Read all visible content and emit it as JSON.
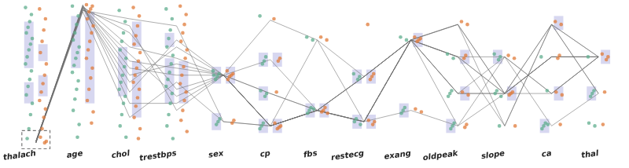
{
  "chart_data": {
    "type": "parallel_coordinates",
    "categories": [
      "thalach",
      "age",
      "chol",
      "trestbps",
      "sex",
      "cp",
      "fbs",
      "restecg",
      "exang",
      "oldpeak",
      "slope",
      "ca",
      "thal"
    ],
    "ylim": [
      0,
      1
    ],
    "tick_labels": "x",
    "grid": false,
    "series": [
      {
        "type": "line",
        "color": "#6e6e6e",
        "line_style": "solid",
        "values": [
          [
            0.03,
            0.99,
            0.6,
            0.55,
            0.5,
            0.14,
            0.25,
            0.17,
            0.75,
            0.86,
            0.37,
            0.86,
            0.63
          ],
          [
            0.02,
            0.98,
            0.8,
            0.4,
            0.5,
            0.14,
            0.25,
            0.49,
            0.75,
            0.63,
            0.37,
            0.63,
            0.63
          ],
          [
            0.03,
            0.97,
            0.45,
            0.7,
            0.5,
            0.37,
            0.25,
            0.17,
            0.75,
            0.37,
            0.63,
            0.37,
            0.63
          ],
          [
            0.02,
            1.0,
            0.3,
            0.3,
            0.5,
            0.14,
            0.75,
            0.49,
            0.75,
            0.63,
            0.14,
            0.86,
            0.37
          ],
          [
            0.03,
            0.96,
            0.9,
            0.85,
            0.17,
            0.14,
            0.25,
            0.17,
            0.75,
            0.86,
            0.37,
            0.63,
            0.63
          ],
          [
            0.02,
            0.98,
            0.55,
            0.5,
            0.5,
            0.61,
            0.25,
            0.49,
            0.75,
            0.37,
            0.37,
            0.37,
            0.63
          ],
          [
            0.03,
            0.99,
            0.7,
            0.62,
            0.5,
            0.14,
            0.25,
            0.17,
            0.25,
            0.14,
            0.63,
            0.14,
            0.37
          ],
          [
            0.02,
            0.95,
            0.2,
            0.45,
            0.17,
            0.14,
            0.25,
            0.49,
            0.75,
            0.63,
            0.37,
            0.63,
            0.63
          ],
          [
            0.03,
            0.97,
            0.65,
            0.35,
            0.5,
            0.89,
            0.75,
            0.17,
            0.75,
            0.86,
            0.14,
            0.86,
            0.63
          ],
          [
            0.02,
            0.99,
            0.38,
            0.75,
            0.5,
            0.14,
            0.25,
            0.17,
            0.75,
            0.37,
            0.37,
            0.63,
            0.63
          ],
          [
            0.03,
            0.98,
            0.5,
            0.58,
            0.5,
            0.14,
            0.25,
            0.49,
            0.75,
            0.63,
            0.63,
            0.37,
            0.63
          ],
          [
            0.02,
            0.96,
            0.85,
            0.25,
            0.5,
            0.37,
            0.25,
            0.17,
            0.75,
            0.14,
            0.37,
            0.86,
            0.37
          ]
        ]
      },
      {
        "type": "scatter",
        "color": "#5fad8e",
        "marker": "circle",
        "values": {
          "thalach": [
            0.98,
            0.93,
            0.88,
            0.84,
            0.8,
            0.76,
            0.72,
            0.68,
            0.63,
            0.58,
            0.53,
            0.47,
            0.42,
            0.36,
            0.3,
            0.22,
            0.12,
            0.05
          ],
          "age": [
            0.99,
            0.92,
            0.86,
            0.8,
            0.75,
            0.7,
            0.66,
            0.62,
            0.57,
            0.52,
            0.46,
            0.4,
            0.33,
            0.25,
            0.15,
            0.06
          ],
          "chol": [
            0.96,
            0.88,
            0.8,
            0.74,
            0.68,
            0.62,
            0.56,
            0.5,
            0.45,
            0.4,
            0.35,
            0.3,
            0.22,
            0.14,
            0.06
          ],
          "trestbps": [
            0.97,
            0.9,
            0.82,
            0.76,
            0.7,
            0.64,
            0.58,
            0.52,
            0.47,
            0.42,
            0.37,
            0.3,
            0.22,
            0.14,
            0.05
          ],
          "sex": [
            0.53,
            0.51,
            0.49,
            0.47,
            0.5,
            0.19,
            0.17,
            0.15
          ],
          "cp": [
            0.92,
            0.63,
            0.6,
            0.58,
            0.39,
            0.37,
            0.35,
            0.16,
            0.14,
            0.12
          ],
          "fbs": [
            0.77,
            0.75,
            0.27,
            0.25,
            0.23,
            0.26
          ],
          "restecg": [
            0.51,
            0.49,
            0.47,
            0.19,
            0.17,
            0.15
          ],
          "exang": [
            0.77,
            0.75,
            0.27,
            0.25,
            0.23
          ],
          "oldpeak": [
            0.65,
            0.62,
            0.39,
            0.37,
            0.35,
            0.16,
            0.14,
            0.12
          ],
          "slope": [
            0.65,
            0.63,
            0.61,
            0.39,
            0.37,
            0.35,
            0.14
          ],
          "ca": [
            0.63,
            0.39,
            0.16,
            0.14,
            0.12,
            0.15
          ],
          "thal": [
            0.63,
            0.39,
            0.37,
            0.35,
            0.16,
            0.14
          ]
        },
        "boxes": {
          "thalach": [
            [
              0.55,
              0.88
            ],
            [
              0.3,
              0.45
            ]
          ],
          "age": [
            [
              0.55,
              0.92
            ]
          ],
          "chol": [
            [
              0.35,
              0.7
            ]
          ],
          "trestbps": [
            [
              0.3,
              0.62
            ],
            [
              0.7,
              0.8
            ]
          ],
          "sex": [
            [
              0.44,
              0.56
            ],
            [
              0.11,
              0.23
            ]
          ],
          "cp": [
            [
              0.56,
              0.66
            ],
            [
              0.32,
              0.42
            ],
            [
              0.09,
              0.19
            ]
          ],
          "fbs": [
            [
              0.2,
              0.3
            ]
          ],
          "restecg": [
            [
              0.44,
              0.54
            ],
            [
              0.12,
              0.22
            ]
          ],
          "exang": [
            [
              0.2,
              0.3
            ]
          ],
          "oldpeak": [
            [
              0.09,
              0.19
            ]
          ],
          "slope": [
            [
              0.58,
              0.68
            ]
          ],
          "ca": [
            [
              0.09,
              0.19
            ]
          ],
          "thal": [
            [
              0.32,
              0.42
            ]
          ]
        }
      },
      {
        "type": "scatter",
        "color": "#e07b39",
        "marker": "circle",
        "values": {
          "thalach": [
            0.97,
            0.9,
            0.82,
            0.74,
            0.66,
            0.58,
            0.5,
            0.44,
            0.38,
            0.32,
            0.26,
            0.2,
            0.12,
            0.06,
            0.03,
            0.02
          ],
          "age": [
            1.0,
            0.99,
            0.97,
            0.95,
            0.9,
            0.85,
            0.8,
            0.74,
            0.68,
            0.62,
            0.55,
            0.48,
            0.4,
            0.32,
            0.24,
            0.16
          ],
          "chol": [
            0.98,
            0.92,
            0.85,
            0.78,
            0.72,
            0.66,
            0.6,
            0.55,
            0.5,
            0.45,
            0.4,
            0.34,
            0.28,
            0.2,
            0.12,
            0.05
          ],
          "trestbps": [
            0.99,
            0.93,
            0.86,
            0.8,
            0.74,
            0.68,
            0.62,
            0.56,
            0.5,
            0.44,
            0.38,
            0.32,
            0.25,
            0.18,
            0.1
          ],
          "sex": [
            0.53,
            0.51,
            0.5,
            0.49,
            0.47,
            0.18,
            0.16
          ],
          "cp": [
            0.9,
            0.62,
            0.6,
            0.38,
            0.16,
            0.14,
            0.13,
            0.12
          ],
          "fbs": [
            0.77,
            0.75,
            0.27,
            0.25,
            0.24,
            0.23
          ],
          "restecg": [
            0.86,
            0.51,
            0.49,
            0.47,
            0.18,
            0.17,
            0.15
          ],
          "exang": [
            0.77,
            0.76,
            0.75,
            0.74,
            0.26,
            0.24
          ],
          "oldpeak": [
            0.88,
            0.86,
            0.64,
            0.62,
            0.38,
            0.36,
            0.15,
            0.13
          ],
          "slope": [
            0.64,
            0.62,
            0.38,
            0.37,
            0.36,
            0.14
          ],
          "ca": [
            0.88,
            0.86,
            0.64,
            0.62,
            0.38,
            0.36,
            0.15
          ],
          "thal": [
            0.65,
            0.63,
            0.61,
            0.38,
            0.15
          ]
        },
        "boxes": {
          "thalach": [
            [
              0.35,
              0.5
            ],
            [
              0.6,
              0.72
            ]
          ],
          "age": [
            [
              0.3,
              0.95
            ]
          ],
          "chol": [
            [
              0.2,
              0.6
            ],
            [
              0.7,
              0.88
            ]
          ],
          "trestbps": [
            [
              0.3,
              0.6
            ]
          ],
          "sex": [
            [
              0.44,
              0.56
            ]
          ],
          "cp": [
            [
              0.56,
              0.66
            ],
            [
              0.09,
              0.19
            ]
          ],
          "fbs": [
            [
              0.2,
              0.3
            ]
          ],
          "restecg": [
            [
              0.44,
              0.54
            ],
            [
              0.12,
              0.22
            ]
          ],
          "exang": [
            [
              0.7,
              0.8
            ]
          ],
          "oldpeak": [
            [
              0.58,
              0.68
            ],
            [
              0.32,
              0.42
            ]
          ],
          "slope": [
            [
              0.32,
              0.42
            ]
          ],
          "ca": [
            [
              0.32,
              0.42
            ],
            [
              0.82,
              0.92
            ]
          ],
          "thal": [
            [
              0.58,
              0.68
            ]
          ]
        }
      }
    ],
    "selection": {
      "category": "thalach",
      "range": [
        0,
        0.09
      ],
      "line_style": "dashed"
    }
  }
}
